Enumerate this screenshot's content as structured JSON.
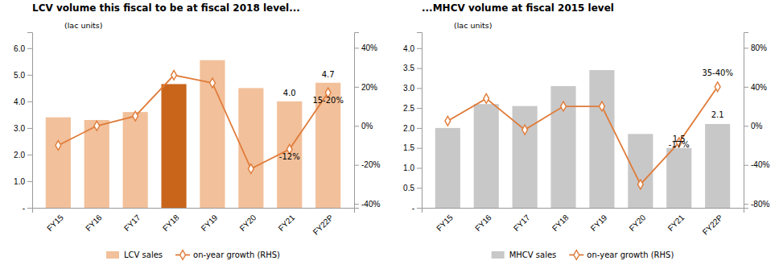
{
  "chart_data": [
    {
      "type": "bar",
      "title": "LCV volume this fiscal to be at fiscal 2018 level...",
      "y_label": "(lac units)",
      "categories": [
        "FY15",
        "FY16",
        "FY17",
        "FY18",
        "FY19",
        "FY20",
        "FY21",
        "FY22P"
      ],
      "series": [
        {
          "name": "LCV sales",
          "type": "bar",
          "color": "#F2C09A",
          "colors": [
            "#F2C09A",
            "#F2C09A",
            "#F2C09A",
            "#C8651B",
            "#F2C09A",
            "#F2C09A",
            "#F2C09A",
            "#F2C09A"
          ],
          "values": [
            3.4,
            3.3,
            3.6,
            4.65,
            5.55,
            4.5,
            4.0,
            4.7
          ]
        },
        {
          "name": "on-year growth (RHS)",
          "type": "line",
          "axis": "y2",
          "color": "#E07B39",
          "marker": "diamond",
          "values": [
            -10,
            0,
            5,
            26,
            22,
            -22,
            -12,
            17
          ]
        }
      ],
      "ylim": [
        0,
        6.6
      ],
      "yticks": [
        {
          "value": 0,
          "label": "-"
        },
        {
          "value": 1.0,
          "label": "1.0"
        },
        {
          "value": 2.0,
          "label": "2.0"
        },
        {
          "value": 3.0,
          "label": "3.0"
        },
        {
          "value": 4.0,
          "label": "4.0"
        },
        {
          "value": 5.0,
          "label": "5.0"
        },
        {
          "value": 6.0,
          "label": "6.0"
        }
      ],
      "y2lim": [
        -42,
        48
      ],
      "y2ticks": [
        {
          "value": -40,
          "label": "-40%"
        },
        {
          "value": -20,
          "label": "-20%"
        },
        {
          "value": 0,
          "label": "0%"
        },
        {
          "value": 20,
          "label": "20%"
        },
        {
          "value": 40,
          "label": "40%"
        }
      ],
      "annotations": [
        {
          "text": "4.0",
          "category": "FY21",
          "y": 4.15
        },
        {
          "text": "4.7",
          "category": "FY22P",
          "y": 4.85
        },
        {
          "text": "-12%",
          "category": "FY21",
          "y": -18,
          "axis": "y2"
        },
        {
          "text": "15-20%",
          "category": "FY22P",
          "y": 11,
          "axis": "y2"
        }
      ],
      "legend": "bottom",
      "grid": false
    },
    {
      "type": "bar",
      "title": "...MHCV volume at fiscal 2015 level",
      "y_label": "(lac units)",
      "categories": [
        "FY15",
        "FY16",
        "FY17",
        "FY18",
        "FY19",
        "FY20",
        "FY21",
        "FY22P"
      ],
      "series": [
        {
          "name": "MHCV sales",
          "type": "bar",
          "color": "#C8C8C8",
          "values": [
            2.0,
            2.6,
            2.55,
            3.05,
            3.45,
            1.85,
            1.5,
            2.1
          ]
        },
        {
          "name": "on-year growth (RHS)",
          "type": "line",
          "axis": "y2",
          "color": "#E07B39",
          "marker": "diamond",
          "values": [
            5,
            28,
            -4,
            20,
            20,
            -60,
            -17,
            40
          ]
        }
      ],
      "ylim": [
        0,
        4.4
      ],
      "yticks": [
        {
          "value": 0,
          "label": "-"
        },
        0.5,
        {
          "value": 1.0,
          "label": "1.0"
        },
        1.5,
        {
          "value": 2.0,
          "label": "2.0"
        },
        2.5,
        {
          "value": 3.0,
          "label": "3.0"
        },
        3.5,
        {
          "value": 4.0,
          "label": "4.0"
        }
      ],
      "y2lim": [
        -84,
        96
      ],
      "y2ticks": [
        {
          "value": -80,
          "label": "-80%"
        },
        {
          "value": -40,
          "label": "-40%"
        },
        {
          "value": 0,
          "label": "0%"
        },
        {
          "value": 40,
          "label": "40%"
        },
        {
          "value": 80,
          "label": "80%"
        }
      ],
      "annotations": [
        {
          "text": "1.5",
          "category": "FY21",
          "y": 1.62
        },
        {
          "text": "2.1",
          "category": "FY22P",
          "y": 2.22
        },
        {
          "text": "-17%",
          "category": "FY21",
          "y": -24,
          "axis": "y2"
        },
        {
          "text": "35-40%",
          "category": "FY22P",
          "y": 50,
          "axis": "y2"
        }
      ],
      "legend": "bottom",
      "grid": false
    }
  ]
}
